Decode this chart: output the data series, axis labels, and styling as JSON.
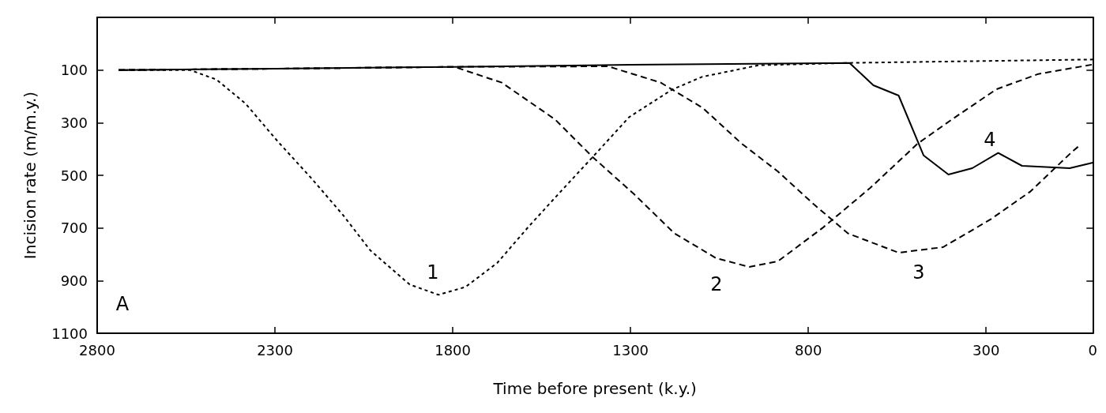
{
  "chart_data": {
    "type": "line",
    "xlabel": "Time before present (k.y.)",
    "ylabel": "Incision rate (m/m.y.)",
    "xlim": [
      2800,
      0
    ],
    "ylim": [
      1100,
      -100
    ],
    "xticks": [
      2800,
      2300,
      1800,
      1300,
      800,
      300,
      0
    ],
    "yticks": [
      100,
      300,
      500,
      700,
      900,
      1100
    ],
    "grid": false,
    "legend": false,
    "marker": "none",
    "series": [
      {
        "name": "1",
        "color": "#000000",
        "line_style": "dotted",
        "x": [
          2740,
          2539,
          2465,
          2383,
          2293,
          2197,
          2108,
          2032,
          1921,
          1840,
          1764,
          1675,
          1586,
          1496,
          1400,
          1304,
          1184,
          1099,
          940,
          688,
          0
        ],
        "values": [
          100,
          100,
          136,
          227,
          370,
          512,
          652,
          785,
          915,
          954,
          924,
          833,
          694,
          561,
          421,
          279,
          175,
          126,
          82,
          73,
          60
        ]
      },
      {
        "name": "2",
        "color": "#000000",
        "line_style": "dashed",
        "x": [
          2740,
          2300,
          1795,
          1662,
          1512,
          1407,
          1289,
          1177,
          1059,
          966,
          886,
          760,
          626,
          492,
          390,
          271,
          153,
          0
        ],
        "values": [
          100,
          95,
          88,
          148,
          288,
          430,
          573,
          720,
          815,
          848,
          827,
          700,
          548,
          379,
          282,
          173,
          115,
          79
        ]
      },
      {
        "name": "3",
        "color": "#000000",
        "line_style": "dashed",
        "x": [
          2740,
          2300,
          1800,
          1363,
          1215,
          1097,
          988,
          886,
          783,
          688,
          546,
          421,
          287,
          175,
          57,
          40
        ],
        "values": [
          100,
          95,
          88,
          86,
          148,
          244,
          379,
          485,
          612,
          721,
          794,
          773,
          667,
          561,
          409,
          390
        ]
      },
      {
        "name": "4",
        "color": "#000000",
        "line_style": "solid",
        "x": [
          2740,
          2300,
          1800,
          1300,
          684,
          617,
          546,
          476,
          406,
          339,
          266,
          199,
          65,
          0
        ],
        "values": [
          100,
          95,
          88,
          80,
          73,
          158,
          197,
          424,
          497,
          473,
          415,
          464,
          473,
          452
        ]
      }
    ],
    "annotations": [
      "A"
    ]
  }
}
